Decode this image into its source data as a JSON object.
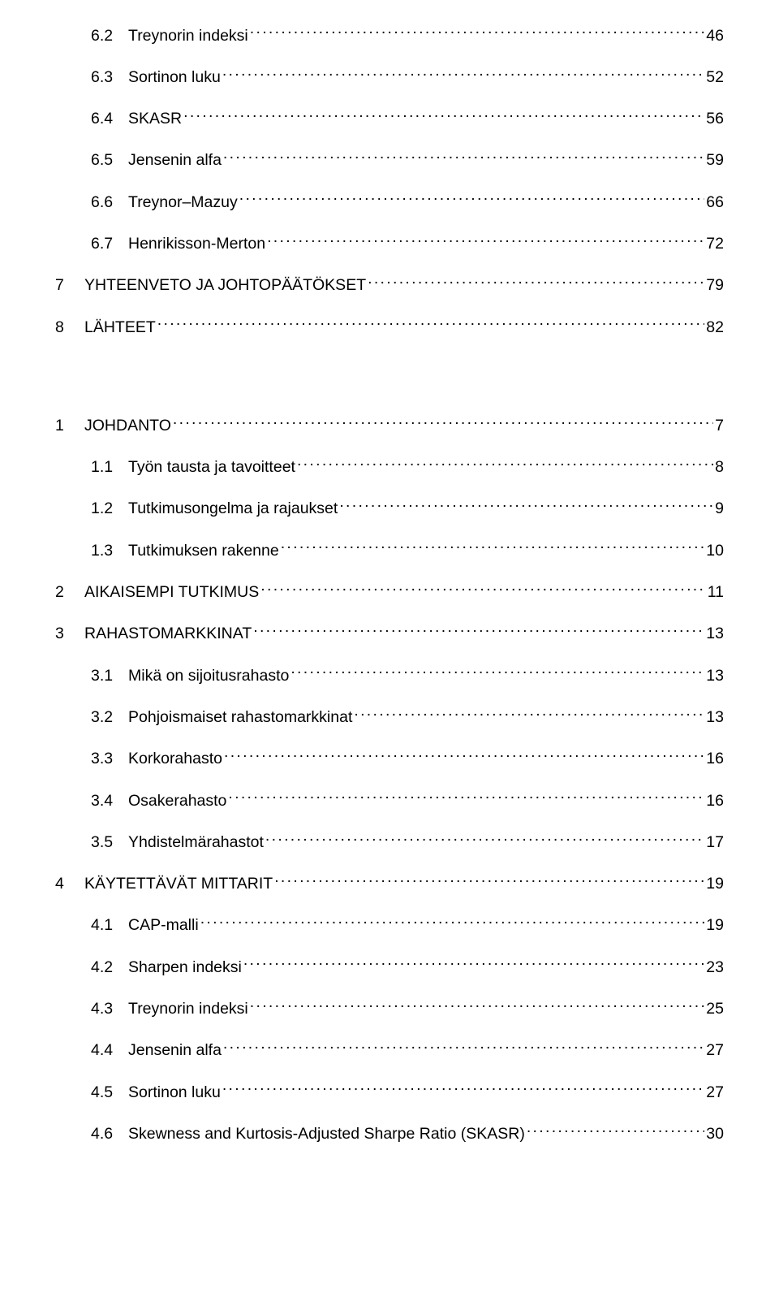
{
  "entries": [
    {
      "indent": "sub",
      "num": "6.2",
      "label": "Treynorin indeksi",
      "page": "46"
    },
    {
      "indent": "sub",
      "num": "6.3",
      "label": "Sortinon luku",
      "page": "52"
    },
    {
      "indent": "sub",
      "num": "6.4",
      "label": "SKASR",
      "page": "56"
    },
    {
      "indent": "sub",
      "num": "6.5",
      "label": "Jensenin alfa",
      "page": "59"
    },
    {
      "indent": "sub",
      "num": "6.6",
      "label": "Treynor–Mazuy",
      "page": "66"
    },
    {
      "indent": "sub",
      "num": "6.7",
      "label": "Henrikisson-Merton",
      "page": "72"
    },
    {
      "indent": "top",
      "num": "7",
      "label": "YHTEENVETO JA JOHTOPÄÄTÖKSET",
      "page": "79"
    },
    {
      "indent": "top",
      "num": "8",
      "label": "LÄHTEET",
      "page": "82",
      "gapAfter": "large"
    },
    {
      "indent": "top",
      "num": "1",
      "label": "JOHDANTO",
      "page": "7"
    },
    {
      "indent": "sub",
      "num": "1.1",
      "label": "Työn tausta ja tavoitteet",
      "page": "8"
    },
    {
      "indent": "sub",
      "num": "1.2",
      "label": "Tutkimusongelma ja rajaukset",
      "page": "9"
    },
    {
      "indent": "sub",
      "num": "1.3",
      "label": "Tutkimuksen rakenne",
      "page": "10"
    },
    {
      "indent": "top",
      "num": "2",
      "label": "AIKAISEMPI TUTKIMUS",
      "page": "11"
    },
    {
      "indent": "top",
      "num": "3",
      "label": "RAHASTOMARKKINAT",
      "page": "13"
    },
    {
      "indent": "sub",
      "num": "3.1",
      "label": "Mikä on sijoitusrahasto",
      "page": "13"
    },
    {
      "indent": "sub",
      "num": "3.2",
      "label": "Pohjoismaiset rahastomarkkinat",
      "page": "13"
    },
    {
      "indent": "sub",
      "num": "3.3",
      "label": "Korkorahasto",
      "page": "16"
    },
    {
      "indent": "sub",
      "num": "3.4",
      "label": "Osakerahasto",
      "page": "16"
    },
    {
      "indent": "sub",
      "num": "3.5",
      "label": "Yhdistelmärahastot",
      "page": "17"
    },
    {
      "indent": "top",
      "num": "4",
      "label": "KÄYTETTÄVÄT MITTARIT",
      "page": "19"
    },
    {
      "indent": "sub",
      "num": "4.1",
      "label": "CAP-malli",
      "page": "19"
    },
    {
      "indent": "sub",
      "num": "4.2",
      "label": "Sharpen indeksi",
      "page": "23"
    },
    {
      "indent": "sub",
      "num": "4.3",
      "label": "Treynorin indeksi",
      "page": "25"
    },
    {
      "indent": "sub",
      "num": "4.4",
      "label": "Jensenin alfa",
      "page": "27"
    },
    {
      "indent": "sub",
      "num": "4.5",
      "label": "Sortinon luku",
      "page": "27"
    },
    {
      "indent": "sub",
      "num": "4.6",
      "label": "Skewness and Kurtosis-Adjusted Sharpe Ratio (SKASR)",
      "page": "30"
    }
  ]
}
